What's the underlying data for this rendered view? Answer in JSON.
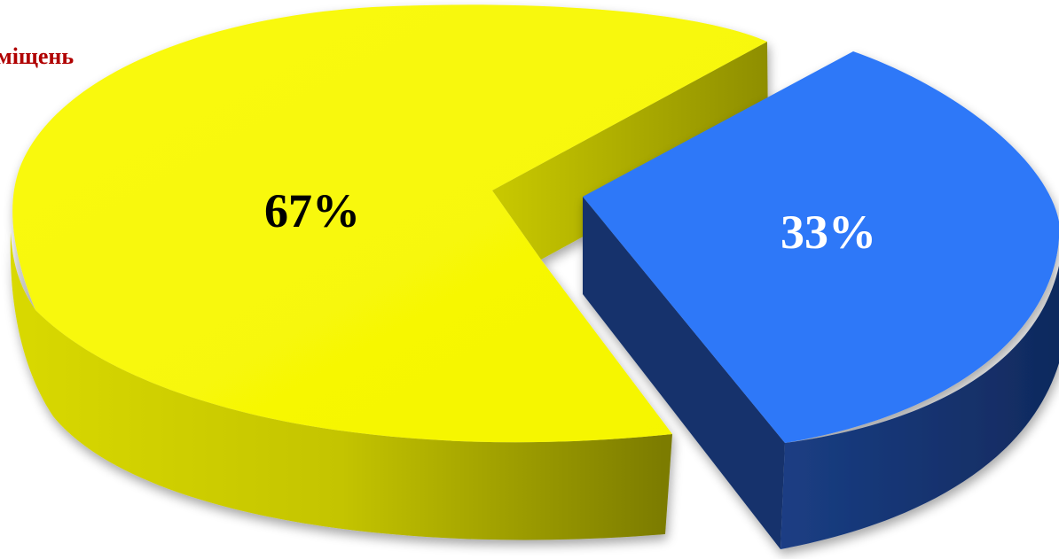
{
  "chart_data": {
    "type": "pie",
    "title_fragment": "міщень",
    "slices": [
      {
        "label": "67%",
        "value": 67,
        "color": "#F7F700",
        "side_color": "#A7A700",
        "label_color": "#000000"
      },
      {
        "label": "33%",
        "value": 33,
        "color": "#2E78F8",
        "side_color": "#153269",
        "label_color": "#FFFFFF"
      }
    ],
    "title_color": "#B00000",
    "style": "3d-exploded"
  }
}
